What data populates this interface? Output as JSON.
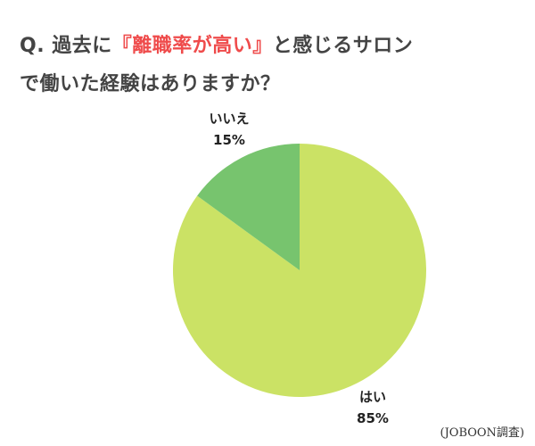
{
  "title": {
    "line1_before": "Q. 過去に",
    "line1_highlight": "『離職率が高い』",
    "line1_after": "と感じるサロン",
    "line2": "で働いた経験はありますか？"
  },
  "source": "(JOBOON調査)",
  "chart_data": {
    "type": "pie",
    "slices": [
      {
        "label": "はい",
        "value": 85,
        "value_label": "85%",
        "color": "#cbe265"
      },
      {
        "label": "いいえ",
        "value": 15,
        "value_label": "15%",
        "color": "#77c46e"
      }
    ]
  }
}
